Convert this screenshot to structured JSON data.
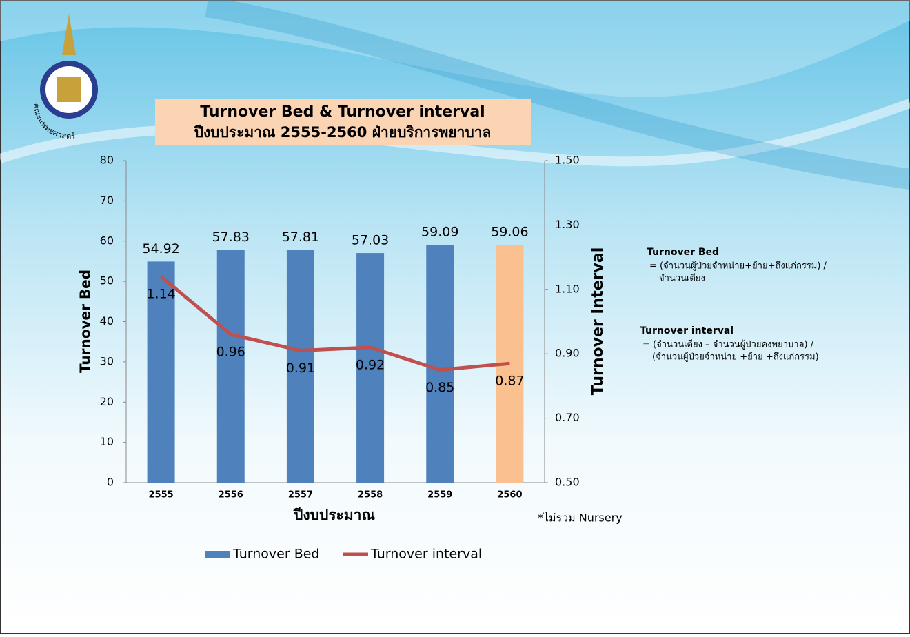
{
  "logo_text": "คณะแพทยศาสตร์",
  "notes": [
    {
      "title": "Turnover Bed",
      "lines": [
        "= (จำนวนผู้ป่วยจำหน่าย+ย้าย+ถึงแก่กรรม)  /",
        "จำนวนเตียง"
      ]
    },
    {
      "title": "Turnover interval",
      "lines": [
        "= (จำนวนเตียง – จำนวนผู้ป่วยคงพยาบาล) /",
        "(จำนวนผู้ป่วยจำหน่าย +ย้าย +ถึงแก่กรรม)"
      ]
    }
  ],
  "chart_data": {
    "type": "bar",
    "title": "Turnover Bed & Turnover interval",
    "subtitle": "ปีงบประมาณ 2555-2560 ฝ่ายบริการพยาบาล",
    "x_label": "ปีงบประมาณ",
    "y_label": "Turnover Bed",
    "y2_label": "Turnover Interval",
    "annotations": [
      "*ไม่รวม Nursery"
    ],
    "categories": [
      "2555",
      "2556",
      "2557",
      "2558",
      "2559",
      "2560"
    ],
    "series": [
      {
        "name": "Turnover Bed",
        "type": "bar",
        "color": "#4f81bd",
        "colors": [
          "#4f81bd",
          "#4f81bd",
          "#4f81bd",
          "#4f81bd",
          "#4f81bd",
          "#fac090"
        ],
        "values": [
          54.92,
          57.83,
          57.81,
          57.03,
          59.09,
          59.06
        ]
      },
      {
        "name": "Turnover interval",
        "type": "line",
        "axis": "y2",
        "color": "#c0504d",
        "values": [
          1.14,
          0.96,
          0.91,
          0.92,
          0.85,
          0.87
        ]
      }
    ],
    "ylim": [
      0,
      80
    ],
    "yticks": [
      0,
      10,
      20,
      30,
      40,
      50,
      60,
      70,
      80
    ],
    "y2lim": [
      0.5,
      1.5
    ],
    "y2ticks": [
      {
        "value": 0.5,
        "label": "0.50"
      },
      {
        "value": 0.7,
        "label": "0.70"
      },
      {
        "value": 0.9,
        "label": "0.90"
      },
      {
        "value": 1.1,
        "label": "1.10"
      },
      {
        "value": 1.3,
        "label": "1.30"
      },
      {
        "value": 1.5,
        "label": "1.50"
      }
    ],
    "grid": false,
    "legend": "bottom"
  }
}
